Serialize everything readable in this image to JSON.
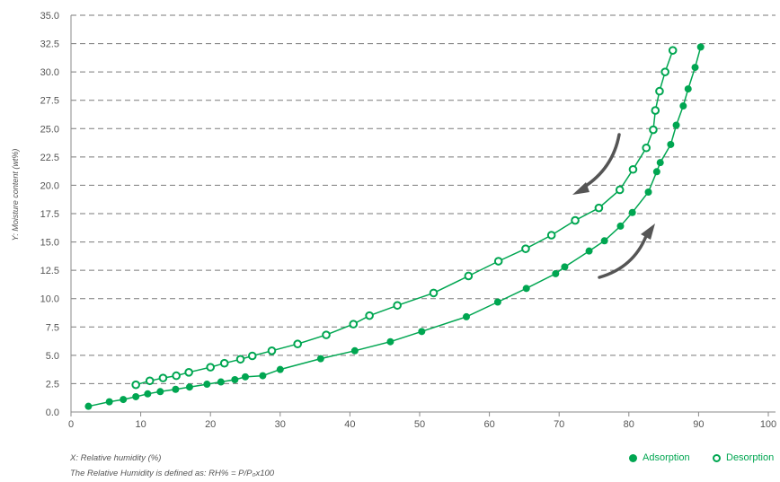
{
  "chart_data": {
    "type": "line",
    "xlabel": "X: Relative humidity (%)",
    "ylabel": "Y: Moisture content (wt%)",
    "note": "The Relative Humidity is defined as: RH% = P/P₀x100",
    "xlim": [
      0,
      100
    ],
    "ylim": [
      0,
      35
    ],
    "x_ticks": [
      0,
      10,
      20,
      30,
      40,
      50,
      60,
      70,
      80,
      90,
      100
    ],
    "y_ticks": [
      0.0,
      2.5,
      5.0,
      7.5,
      10.0,
      12.5,
      15.0,
      17.5,
      20.0,
      22.5,
      25.0,
      27.5,
      30.0,
      32.5,
      35.0
    ],
    "x_tick_labels": [
      "0",
      "10",
      "20",
      "30",
      "40",
      "50",
      "60",
      "70",
      "80",
      "90",
      "100"
    ],
    "y_tick_labels": [
      "0.0",
      "2.5",
      "5.0",
      "7.5",
      "10.0",
      "12.5",
      "15.0",
      "17.5",
      "20.0",
      "22.5",
      "25.0",
      "27.5",
      "30.0",
      "32.5",
      "35.0"
    ],
    "grid": "horizontal dashed",
    "legend_position": "bottom-right",
    "series": [
      {
        "name": "Adsorption",
        "marker": "filled",
        "color": "#00a651",
        "points": [
          [
            2.5,
            0.5
          ],
          [
            5.5,
            0.9
          ],
          [
            7.5,
            1.1
          ],
          [
            9.3,
            1.35
          ],
          [
            11.0,
            1.6
          ],
          [
            12.8,
            1.8
          ],
          [
            15.0,
            2.0
          ],
          [
            17.0,
            2.2
          ],
          [
            19.5,
            2.45
          ],
          [
            21.5,
            2.65
          ],
          [
            23.5,
            2.85
          ],
          [
            25.0,
            3.1
          ],
          [
            27.5,
            3.2
          ],
          [
            30.0,
            3.75
          ],
          [
            35.8,
            4.7
          ],
          [
            40.7,
            5.4
          ],
          [
            45.8,
            6.2
          ],
          [
            50.3,
            7.1
          ],
          [
            56.7,
            8.4
          ],
          [
            61.2,
            9.7
          ],
          [
            65.3,
            10.9
          ],
          [
            69.5,
            12.2
          ],
          [
            70.8,
            12.8
          ],
          [
            74.3,
            14.2
          ],
          [
            76.5,
            15.1
          ],
          [
            78.8,
            16.4
          ],
          [
            80.5,
            17.6
          ],
          [
            82.8,
            19.4
          ],
          [
            84.0,
            21.2
          ],
          [
            84.5,
            22.0
          ],
          [
            86.0,
            23.6
          ],
          [
            86.8,
            25.3
          ],
          [
            87.8,
            27.0
          ],
          [
            88.5,
            28.5
          ],
          [
            89.5,
            30.4
          ],
          [
            90.3,
            32.2
          ]
        ]
      },
      {
        "name": "Desorption",
        "marker": "open",
        "color": "#00a651",
        "points": [
          [
            9.3,
            2.4
          ],
          [
            11.3,
            2.75
          ],
          [
            13.2,
            3.0
          ],
          [
            15.1,
            3.2
          ],
          [
            16.9,
            3.5
          ],
          [
            20.0,
            3.95
          ],
          [
            22.0,
            4.3
          ],
          [
            24.3,
            4.65
          ],
          [
            26.0,
            4.95
          ],
          [
            28.8,
            5.4
          ],
          [
            32.5,
            6.0
          ],
          [
            36.6,
            6.8
          ],
          [
            40.5,
            7.75
          ],
          [
            42.8,
            8.5
          ],
          [
            46.8,
            9.4
          ],
          [
            52.0,
            10.5
          ],
          [
            57.0,
            12.0
          ],
          [
            61.3,
            13.3
          ],
          [
            65.2,
            14.4
          ],
          [
            68.9,
            15.6
          ],
          [
            72.3,
            16.9
          ],
          [
            75.7,
            18.0
          ],
          [
            78.7,
            19.6
          ],
          [
            80.6,
            21.4
          ],
          [
            82.5,
            23.3
          ],
          [
            83.5,
            24.9
          ],
          [
            83.8,
            26.6
          ],
          [
            84.4,
            28.3
          ],
          [
            85.2,
            30.0
          ],
          [
            86.3,
            31.9
          ]
        ]
      }
    ]
  },
  "legend": {
    "adsorption_label": "Adsorption",
    "desorption_label": "Desorption"
  },
  "arrows_color": "#555555"
}
